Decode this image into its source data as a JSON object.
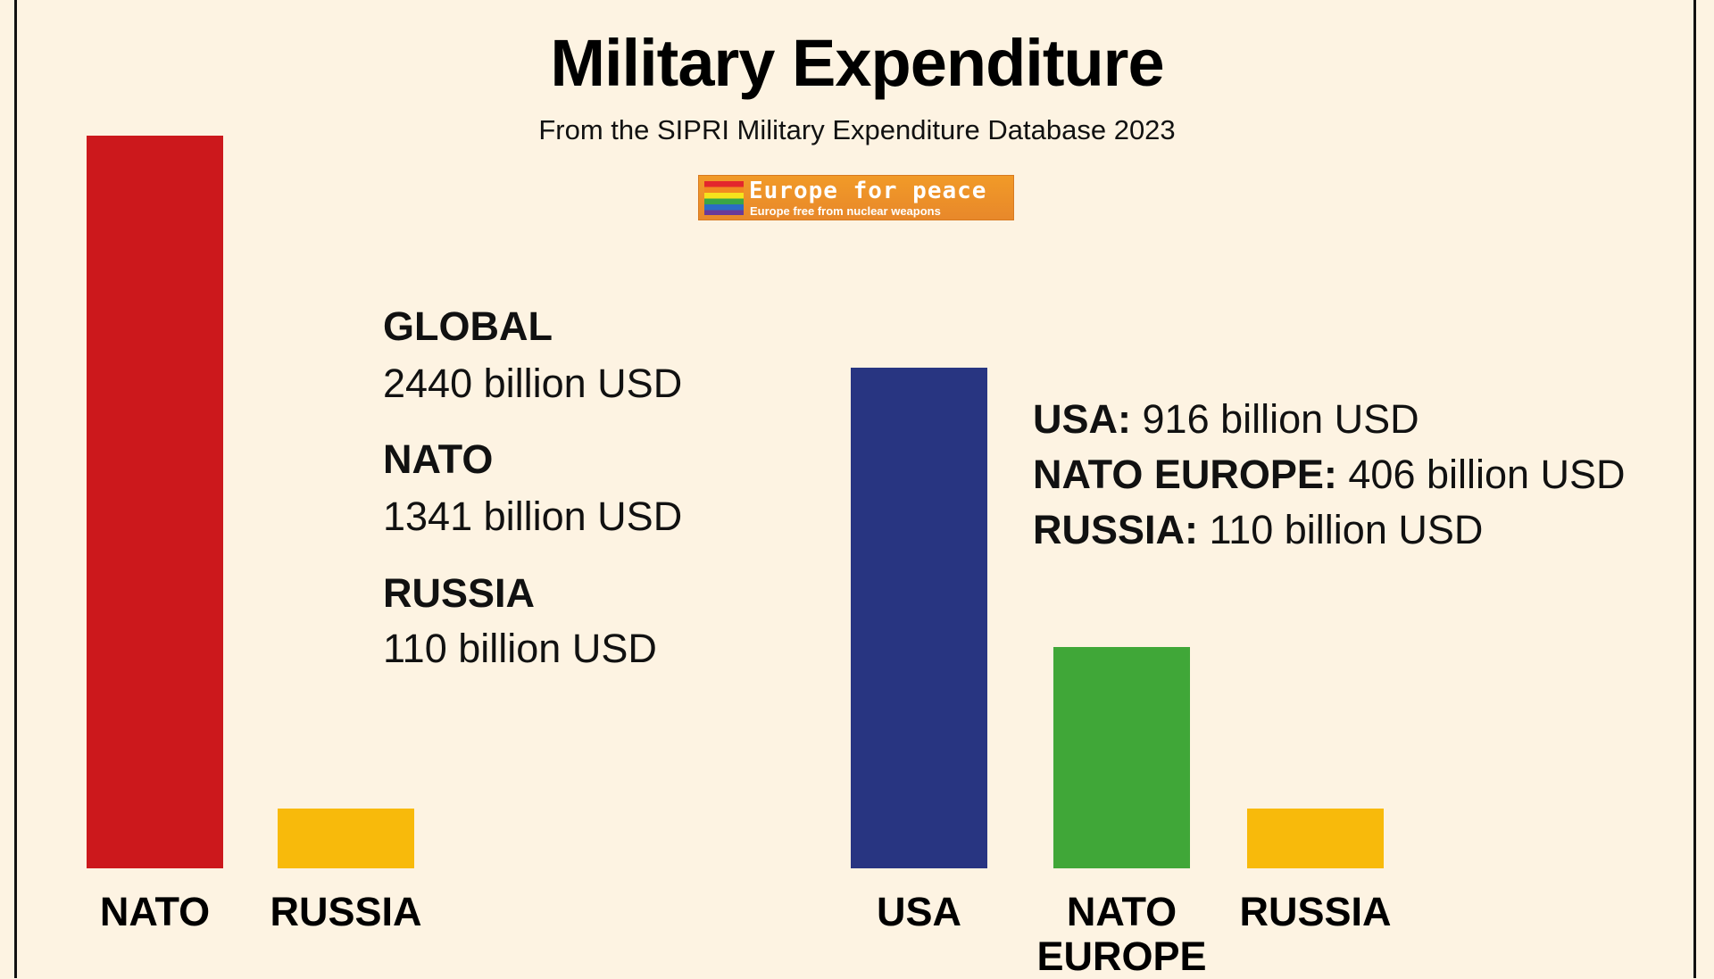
{
  "header": {
    "title": "Military Expenditure",
    "subtitle": "From the SIPRI Military Expenditure Database 2023",
    "logo_title": "Europe for peace",
    "logo_subtitle": "Europe free from nuclear weapons"
  },
  "chart_data": [
    {
      "type": "bar",
      "categories": [
        "NATO",
        "RUSSIA"
      ],
      "values": [
        1341,
        110
      ],
      "colors": [
        "#cc181c",
        "#f8ba0b"
      ],
      "annotations": [
        {
          "label": "GLOBAL",
          "text": "2440 billion USD"
        },
        {
          "label": "NATO",
          "text": "1341 billion USD"
        },
        {
          "label": "RUSSIA",
          "text": "110 billion USD"
        }
      ]
    },
    {
      "type": "bar",
      "categories": [
        "USA",
        "NATO EUROPE",
        "RUSSIA"
      ],
      "values": [
        916,
        406,
        110
      ],
      "colors": [
        "#283581",
        "#40a738",
        "#f8ba0b"
      ],
      "annotations": [
        {
          "label": "USA:",
          "text": "916 billion USD"
        },
        {
          "label": "NATO EUROPE:",
          "text": "406 billion USD"
        },
        {
          "label": "RUSSIA:",
          "text": "110 billion USD"
        }
      ]
    }
  ]
}
